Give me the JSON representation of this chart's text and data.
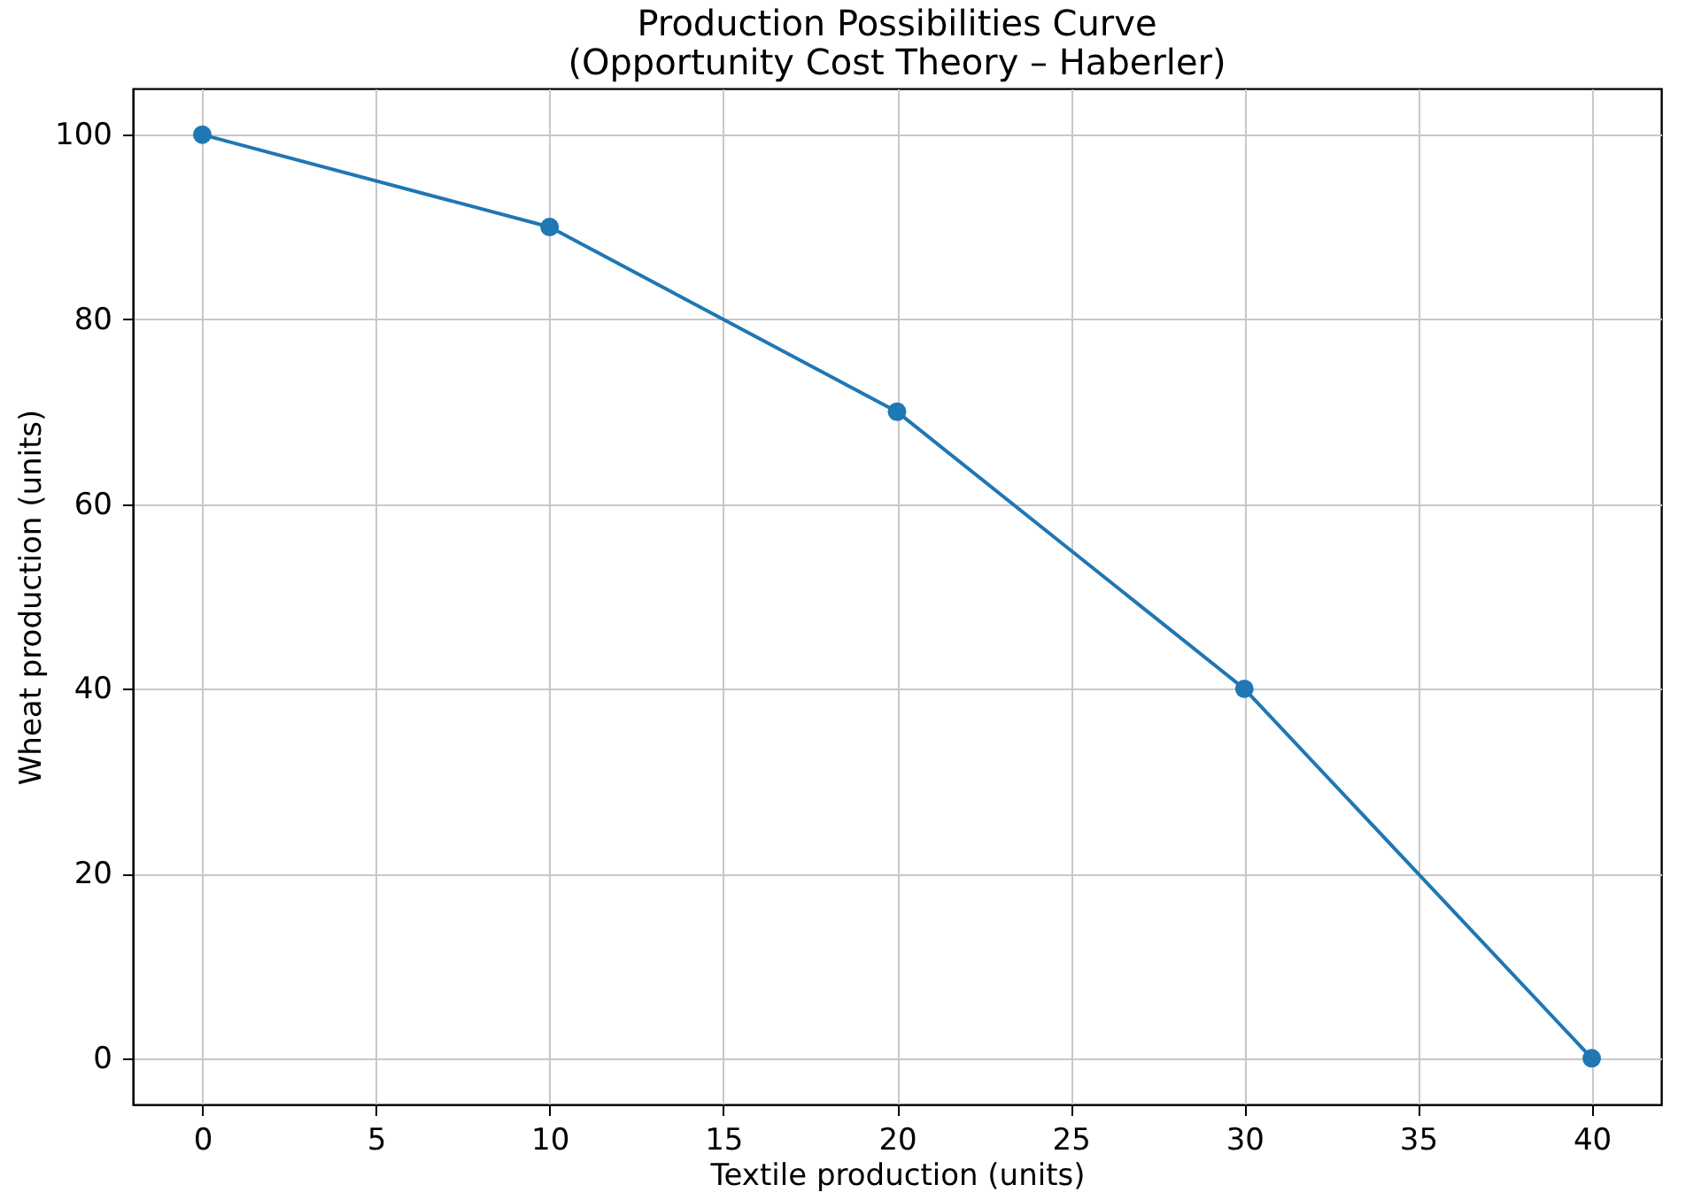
{
  "chart_data": {
    "type": "line",
    "title": "Production Possibilities Curve\n(Opportunity Cost Theory – Haberler)",
    "xlabel": "Textile production (units)",
    "ylabel": "Wheat production (units)",
    "x": [
      0,
      10,
      20,
      30,
      40
    ],
    "series": [
      {
        "color": "#1f77b4",
        "values": [
          100,
          90,
          70,
          40,
          0
        ]
      }
    ],
    "xlim": [
      -2,
      42
    ],
    "ylim": [
      -5,
      105
    ],
    "xticks": [
      0,
      5,
      10,
      15,
      20,
      25,
      30,
      35,
      40
    ],
    "yticks": [
      0,
      20,
      40,
      60,
      80,
      100
    ],
    "grid": true,
    "marker": "circle",
    "line_style": "solid"
  }
}
